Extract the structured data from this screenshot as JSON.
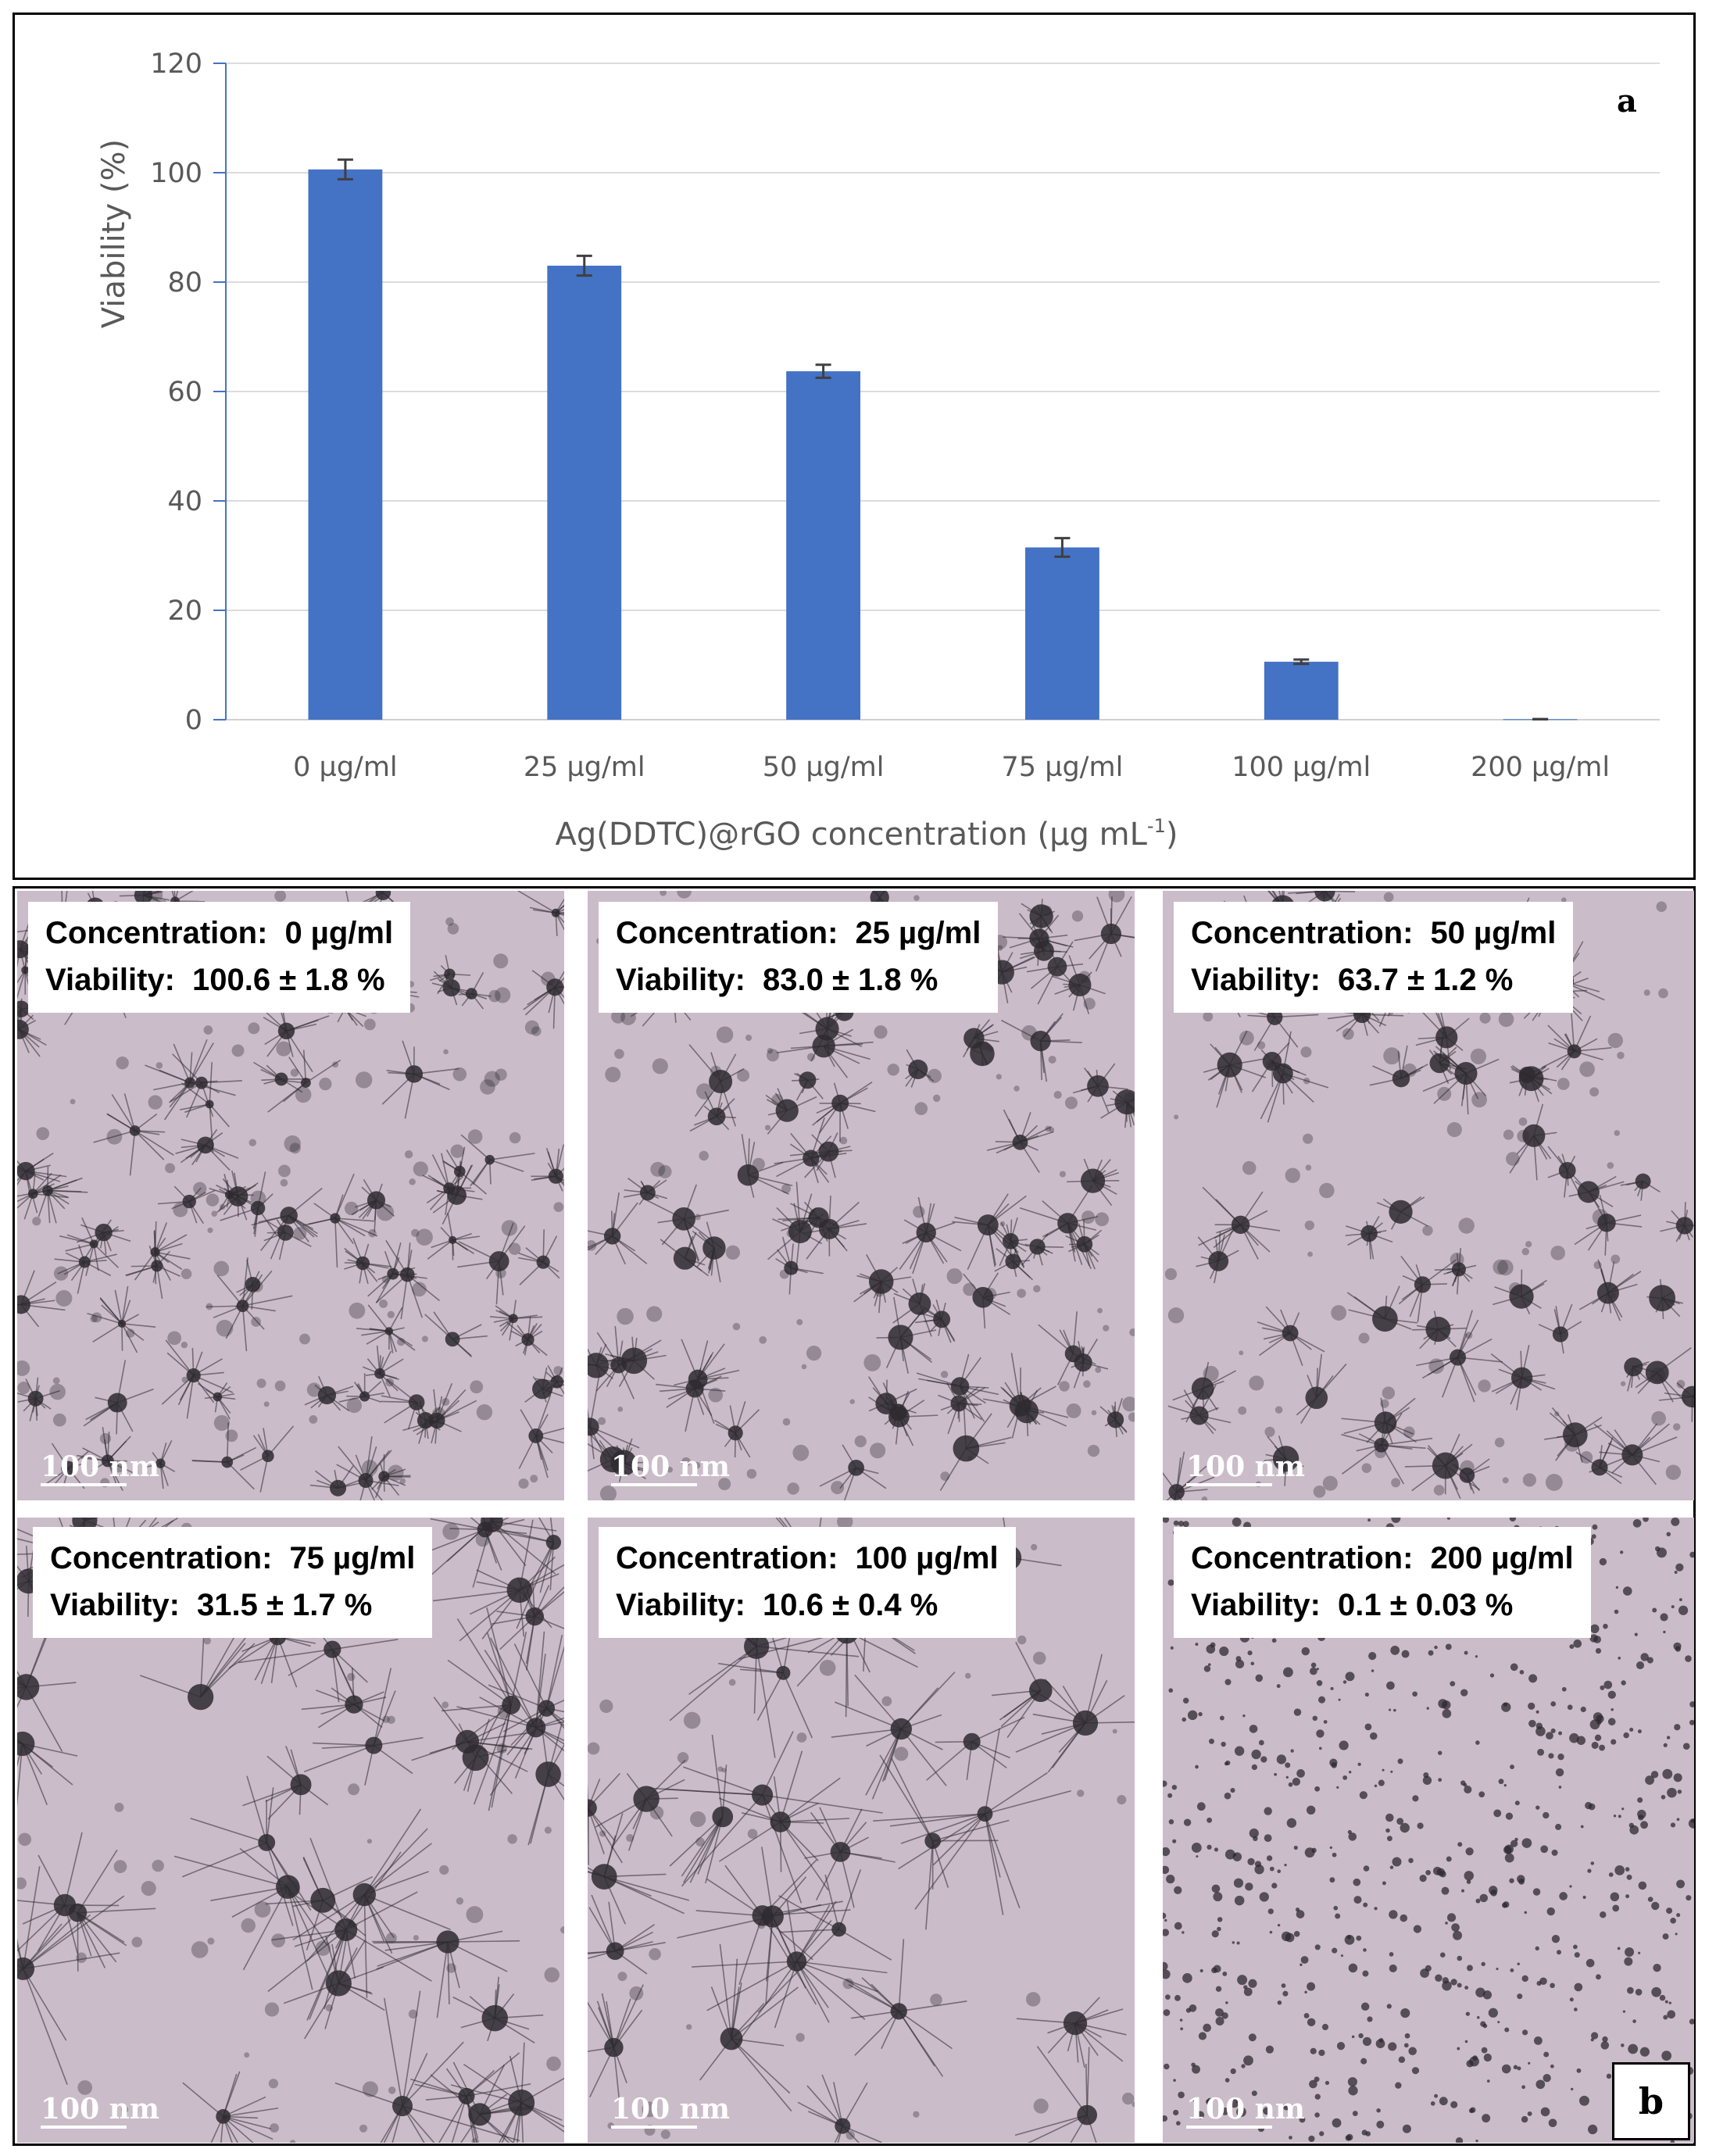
{
  "chart_data": {
    "type": "bar",
    "panel_label": "a",
    "categories": [
      "0 µg/ml",
      "25 µg/ml",
      "50 µg/ml",
      "75 µg/ml",
      "100 µg/ml",
      "200 µg/ml"
    ],
    "values": [
      100.6,
      83.0,
      63.7,
      31.5,
      10.6,
      0.1
    ],
    "errors": [
      1.8,
      1.8,
      1.2,
      1.7,
      0.4,
      0.03
    ],
    "ylabel": "Viability (%)",
    "xlabel_main": "Ag(DDTC)@rGO concentration (µg mL",
    "xlabel_sup": "-1",
    "xlabel_end": ")",
    "ylim": [
      0,
      120
    ],
    "yticks": [
      0,
      20,
      40,
      60,
      80,
      100,
      120
    ],
    "grid": true,
    "bar_color": "#4472c4",
    "error_bar_color": "#404040"
  },
  "micrographs": {
    "panel_label": "b",
    "concentration_label": "Concentration:",
    "viability_label": "Viability:",
    "panels": [
      {
        "concentration": "0 µg/ml",
        "viability": "100.6 ± 1.8 %",
        "scale": "100 nm"
      },
      {
        "concentration": "25 µg/ml",
        "viability": "83.0 ± 1.8 %",
        "scale": "100 nm"
      },
      {
        "concentration": "50 µg/ml",
        "viability": "63.7 ± 1.2 %",
        "scale": "100 nm"
      },
      {
        "concentration": "75 µg/ml",
        "viability": "31.5 ± 1.7 %",
        "scale": "100 nm"
      },
      {
        "concentration": "100 µg/ml",
        "viability": "10.6 ± 0.4 %",
        "scale": "100 nm"
      },
      {
        "concentration": "200 µg/ml",
        "viability": "0.1 ± 0.03 %",
        "scale": "100 nm"
      }
    ],
    "background_color": "#cbbcc9",
    "feature_color": "#2e2a30"
  }
}
